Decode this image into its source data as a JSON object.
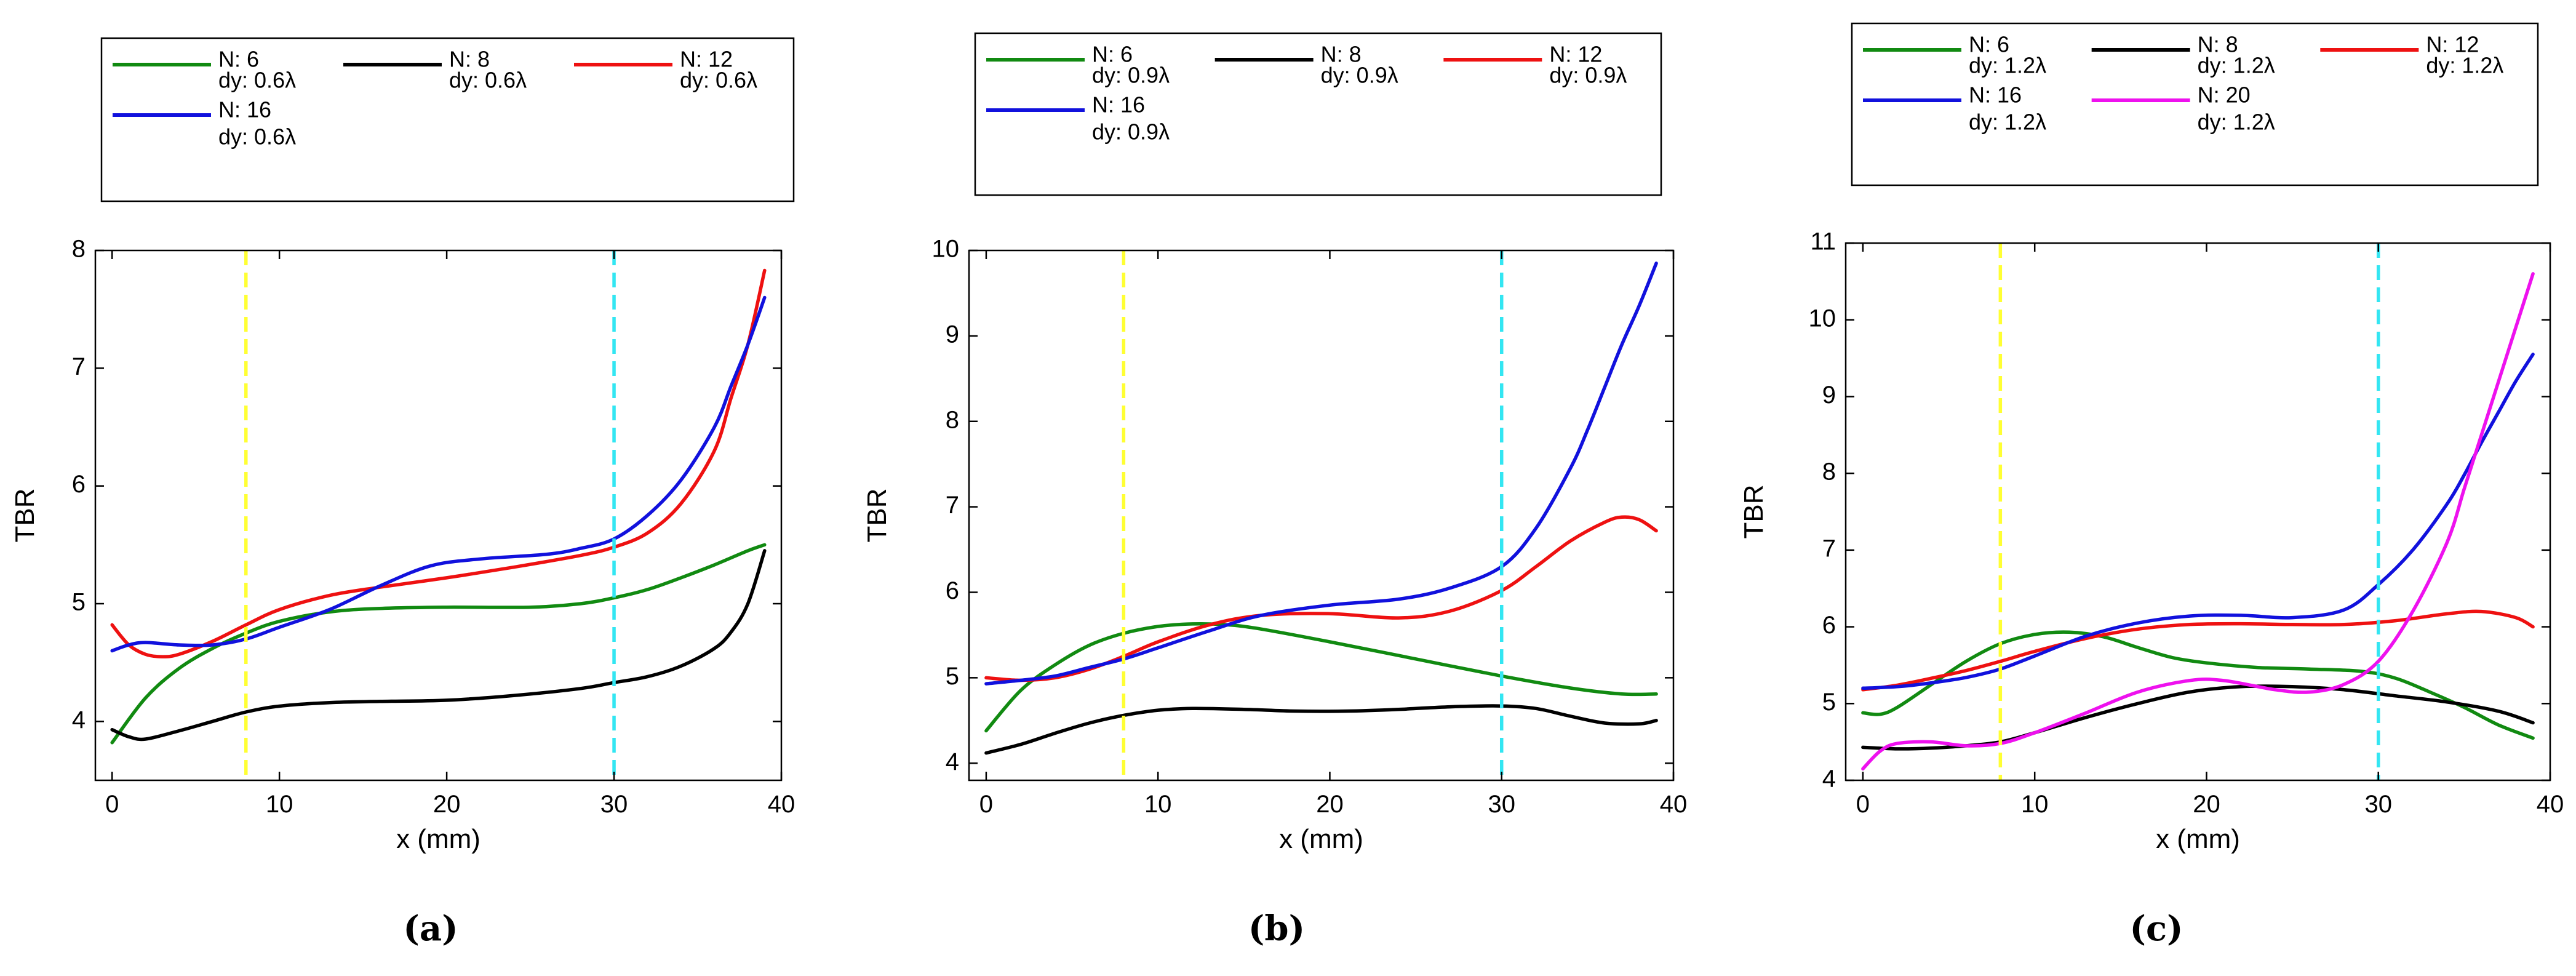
{
  "figure": {
    "x_vlines": [
      8,
      30
    ],
    "vline_colors": [
      "#ffff33",
      "#33e6f2"
    ]
  },
  "chart_data": [
    {
      "type": "line",
      "panel": "a",
      "caption": "(a)",
      "xlabel": "x (mm)",
      "ylabel": "TBR",
      "xlim": [
        -1,
        40
      ],
      "ylim": [
        3.5,
        8
      ],
      "xticks": [
        0,
        10,
        20,
        30,
        40
      ],
      "yticks": [
        4,
        5,
        6,
        7,
        8
      ],
      "legend": {
        "columns": 3,
        "entries": [
          {
            "n": "N: 6",
            "dy": "dy: 0.6λ",
            "color": "#118a11"
          },
          {
            "n": "N: 8",
            "dy": "dy: 0.6λ",
            "color": "#000000"
          },
          {
            "n": "N: 12",
            "dy": "dy: 0.6λ",
            "color": "#ee1111"
          },
          {
            "n": "N: 16",
            "dy": "dy: 0.6λ",
            "color": "#1111dd"
          }
        ]
      },
      "series": [
        {
          "name": "N: 6, dy: 0.6λ",
          "color": "#118a11",
          "x": [
            0,
            2,
            4,
            6,
            8,
            10,
            13,
            16,
            20,
            25,
            28,
            30,
            32,
            34,
            36,
            38,
            39
          ],
          "y": [
            3.82,
            4.2,
            4.45,
            4.62,
            4.75,
            4.85,
            4.93,
            4.96,
            4.97,
            4.97,
            5.0,
            5.05,
            5.12,
            5.22,
            5.33,
            5.45,
            5.5
          ]
        },
        {
          "name": "N: 8, dy: 0.6λ",
          "color": "#000000",
          "x": [
            0,
            1,
            2,
            4,
            6,
            8,
            10,
            13,
            16,
            20,
            24,
            28,
            30,
            32,
            34,
            36,
            37,
            38,
            39
          ],
          "y": [
            3.93,
            3.87,
            3.85,
            3.92,
            4.0,
            4.08,
            4.13,
            4.16,
            4.17,
            4.18,
            4.22,
            4.28,
            4.33,
            4.38,
            4.47,
            4.62,
            4.76,
            5.0,
            5.45
          ]
        },
        {
          "name": "N: 12, dy: 0.6λ",
          "color": "#ee1111",
          "x": [
            0,
            1,
            2,
            3,
            4,
            6,
            8,
            10,
            13,
            16,
            20,
            24,
            28,
            30,
            32,
            34,
            36,
            37,
            38,
            39
          ],
          "y": [
            4.82,
            4.65,
            4.57,
            4.55,
            4.57,
            4.68,
            4.82,
            4.95,
            5.07,
            5.14,
            5.22,
            5.31,
            5.41,
            5.48,
            5.6,
            5.85,
            6.3,
            6.75,
            7.2,
            7.83
          ]
        },
        {
          "name": "N: 16, dy: 0.6λ",
          "color": "#1111dd",
          "x": [
            0,
            1,
            2,
            4,
            6,
            8,
            10,
            13,
            16,
            19,
            22,
            26,
            28,
            30,
            32,
            34,
            36,
            37,
            38,
            39
          ],
          "y": [
            4.6,
            4.65,
            4.67,
            4.65,
            4.65,
            4.7,
            4.8,
            4.95,
            5.15,
            5.32,
            5.38,
            5.42,
            5.47,
            5.55,
            5.75,
            6.05,
            6.5,
            6.85,
            7.2,
            7.6
          ]
        }
      ]
    },
    {
      "type": "line",
      "panel": "b",
      "caption": "(b)",
      "xlabel": "x (mm)",
      "ylabel": "TBR",
      "xlim": [
        -1,
        40
      ],
      "ylim": [
        3.8,
        10
      ],
      "xticks": [
        0,
        10,
        20,
        30,
        40
      ],
      "yticks": [
        4,
        5,
        6,
        7,
        8,
        9,
        10
      ],
      "legend": {
        "columns": 3,
        "entries": [
          {
            "n": "N: 6",
            "dy": "dy: 0.9λ",
            "color": "#118a11"
          },
          {
            "n": "N: 8",
            "dy": "dy: 0.9λ",
            "color": "#000000"
          },
          {
            "n": "N: 12",
            "dy": "dy: 0.9λ",
            "color": "#ee1111"
          },
          {
            "n": "N: 16",
            "dy": "dy: 0.9λ",
            "color": "#1111dd"
          }
        ]
      },
      "series": [
        {
          "name": "N: 6, dy: 0.9λ",
          "color": "#118a11",
          "x": [
            0,
            2,
            4,
            6,
            8,
            10,
            12,
            14,
            16,
            20,
            25,
            30,
            34,
            37,
            39
          ],
          "y": [
            4.38,
            4.85,
            5.15,
            5.38,
            5.52,
            5.6,
            5.63,
            5.62,
            5.57,
            5.42,
            5.22,
            5.02,
            4.88,
            4.81,
            4.81
          ]
        },
        {
          "name": "N: 8, dy: 0.9λ",
          "color": "#000000",
          "x": [
            0,
            2,
            4,
            6,
            8,
            10,
            12,
            15,
            18,
            21,
            24,
            27,
            30,
            32,
            34,
            36,
            38,
            39
          ],
          "y": [
            4.12,
            4.22,
            4.35,
            4.47,
            4.56,
            4.62,
            4.64,
            4.63,
            4.61,
            4.61,
            4.63,
            4.66,
            4.67,
            4.64,
            4.55,
            4.47,
            4.46,
            4.5
          ]
        },
        {
          "name": "N: 12, dy: 0.9λ",
          "color": "#ee1111",
          "x": [
            0,
            2,
            4,
            6,
            8,
            10,
            13,
            16,
            20,
            24,
            27,
            30,
            32,
            34,
            36,
            37,
            38,
            39
          ],
          "y": [
            5.0,
            4.97,
            5.0,
            5.1,
            5.25,
            5.42,
            5.62,
            5.73,
            5.75,
            5.7,
            5.78,
            6.02,
            6.3,
            6.6,
            6.82,
            6.88,
            6.85,
            6.72
          ]
        },
        {
          "name": "N: 16, dy: 0.9λ",
          "color": "#1111dd",
          "x": [
            0,
            2,
            4,
            6,
            8,
            10,
            13,
            16,
            20,
            24,
            27,
            30,
            32,
            34,
            35,
            36,
            37,
            38,
            39
          ],
          "y": [
            4.93,
            4.97,
            5.02,
            5.12,
            5.22,
            5.35,
            5.55,
            5.73,
            5.85,
            5.92,
            6.05,
            6.3,
            6.75,
            7.45,
            7.9,
            8.4,
            8.9,
            9.35,
            9.85
          ]
        }
      ]
    },
    {
      "type": "line",
      "panel": "c",
      "caption": "(c)",
      "xlabel": "x (mm)",
      "ylabel": "TBR",
      "xlim": [
        -1,
        40
      ],
      "ylim": [
        4,
        11
      ],
      "xticks": [
        0,
        10,
        20,
        30,
        40
      ],
      "yticks": [
        4,
        5,
        6,
        7,
        8,
        9,
        10,
        11
      ],
      "legend": {
        "columns": 3,
        "entries": [
          {
            "n": "N: 6",
            "dy": "dy: 1.2λ",
            "color": "#118a11"
          },
          {
            "n": "N: 8",
            "dy": "dy: 1.2λ",
            "color": "#000000"
          },
          {
            "n": "N: 12",
            "dy": "dy: 1.2λ",
            "color": "#ee1111"
          },
          {
            "n": "N: 16",
            "dy": "dy: 1.2λ",
            "color": "#1111dd"
          },
          {
            "n": "N: 20",
            "dy": "dy: 1.2λ",
            "color": "#ee11ee"
          }
        ]
      },
      "series": [
        {
          "name": "N: 6, dy: 1.2λ",
          "color": "#118a11",
          "x": [
            0,
            1,
            2,
            4,
            6,
            8,
            10,
            12,
            14,
            16,
            18,
            20,
            23,
            26,
            29,
            31,
            33,
            35,
            37,
            39
          ],
          "y": [
            4.88,
            4.86,
            4.95,
            5.25,
            5.55,
            5.78,
            5.9,
            5.93,
            5.87,
            5.73,
            5.6,
            5.53,
            5.47,
            5.45,
            5.42,
            5.33,
            5.15,
            4.95,
            4.72,
            4.55
          ]
        },
        {
          "name": "N: 8, dy: 1.2λ",
          "color": "#000000",
          "x": [
            0,
            2,
            4,
            6,
            8,
            10,
            13,
            16,
            19,
            22,
            25,
            28,
            31,
            34,
            37,
            39
          ],
          "y": [
            4.43,
            4.41,
            4.42,
            4.45,
            4.5,
            4.62,
            4.82,
            5.0,
            5.15,
            5.22,
            5.22,
            5.18,
            5.1,
            5.02,
            4.9,
            4.75
          ]
        },
        {
          "name": "N: 12, dy: 1.2λ",
          "color": "#ee1111",
          "x": [
            0,
            2,
            4,
            6,
            8,
            10,
            13,
            16,
            19,
            22,
            25,
            28,
            31,
            34,
            36,
            38,
            39
          ],
          "y": [
            5.18,
            5.24,
            5.33,
            5.43,
            5.55,
            5.68,
            5.85,
            5.97,
            6.03,
            6.04,
            6.03,
            6.03,
            6.08,
            6.17,
            6.2,
            6.12,
            6.0
          ]
        },
        {
          "name": "N: 16, dy: 1.2λ",
          "color": "#1111dd",
          "x": [
            0,
            2,
            4,
            6,
            8,
            10,
            13,
            16,
            19,
            22,
            25,
            28,
            30,
            32,
            34,
            35,
            36,
            37,
            38,
            39
          ],
          "y": [
            5.2,
            5.22,
            5.27,
            5.34,
            5.45,
            5.62,
            5.88,
            6.05,
            6.14,
            6.15,
            6.12,
            6.22,
            6.55,
            7.0,
            7.6,
            7.98,
            8.4,
            8.8,
            9.2,
            9.55
          ]
        },
        {
          "name": "N: 20, dy: 1.2λ",
          "color": "#ee11ee",
          "x": [
            0,
            1,
            2,
            4,
            6,
            8,
            10,
            13,
            16,
            19,
            21,
            24,
            26,
            28,
            30,
            32,
            34,
            35,
            36,
            37,
            38,
            39
          ],
          "y": [
            4.15,
            4.38,
            4.48,
            4.5,
            4.45,
            4.48,
            4.62,
            4.88,
            5.15,
            5.3,
            5.3,
            5.18,
            5.15,
            5.25,
            5.55,
            6.2,
            7.1,
            7.8,
            8.5,
            9.2,
            9.9,
            10.6
          ]
        }
      ]
    }
  ]
}
